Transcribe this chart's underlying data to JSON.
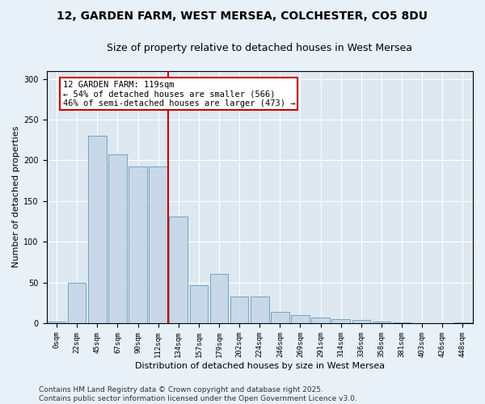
{
  "title_line1": "12, GARDEN FARM, WEST MERSEA, COLCHESTER, CO5 8DU",
  "title_line2": "Size of property relative to detached houses in West Mersea",
  "xlabel": "Distribution of detached houses by size in West Mersea",
  "ylabel": "Number of detached properties",
  "bar_color": "#c8d8e8",
  "bar_edge_color": "#6699bb",
  "background_color": "#dde8f0",
  "fig_background_color": "#e8f0f8",
  "categories": [
    "0sqm",
    "22sqm",
    "45sqm",
    "67sqm",
    "90sqm",
    "112sqm",
    "134sqm",
    "157sqm",
    "179sqm",
    "202sqm",
    "224sqm",
    "246sqm",
    "269sqm",
    "291sqm",
    "314sqm",
    "336sqm",
    "358sqm",
    "381sqm",
    "403sqm",
    "426sqm",
    "448sqm"
  ],
  "values": [
    2,
    50,
    230,
    207,
    192,
    192,
    131,
    47,
    60,
    33,
    33,
    14,
    10,
    7,
    5,
    4,
    2,
    1,
    0,
    0,
    1
  ],
  "property_line_x": 5.5,
  "annotation_text": "12 GARDEN FARM: 119sqm\n← 54% of detached houses are smaller (566)\n46% of semi-detached houses are larger (473) →",
  "annotation_box_color": "#ffffff",
  "annotation_box_edge_color": "#cc0000",
  "vline_color": "#cc0000",
  "ylim": [
    0,
    310
  ],
  "yticks": [
    0,
    50,
    100,
    150,
    200,
    250,
    300
  ],
  "footer_line1": "Contains HM Land Registry data © Crown copyright and database right 2025.",
  "footer_line2": "Contains public sector information licensed under the Open Government Licence v3.0.",
  "title_fontsize": 10,
  "subtitle_fontsize": 9,
  "axis_label_fontsize": 8,
  "tick_fontsize": 6.5,
  "annotation_fontsize": 7.5,
  "footer_fontsize": 6.5
}
